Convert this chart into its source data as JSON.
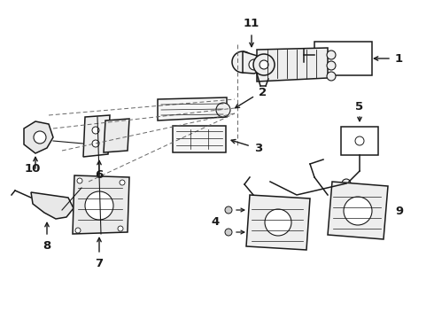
{
  "bg_color": "#ffffff",
  "line_color": "#1a1a1a",
  "fig_width": 4.9,
  "fig_height": 3.6,
  "dpi": 100,
  "xlim": [
    0,
    490
  ],
  "ylim": [
    0,
    360
  ],
  "parts": {
    "label_fontsize": 9.5,
    "label_fontweight": "bold"
  }
}
